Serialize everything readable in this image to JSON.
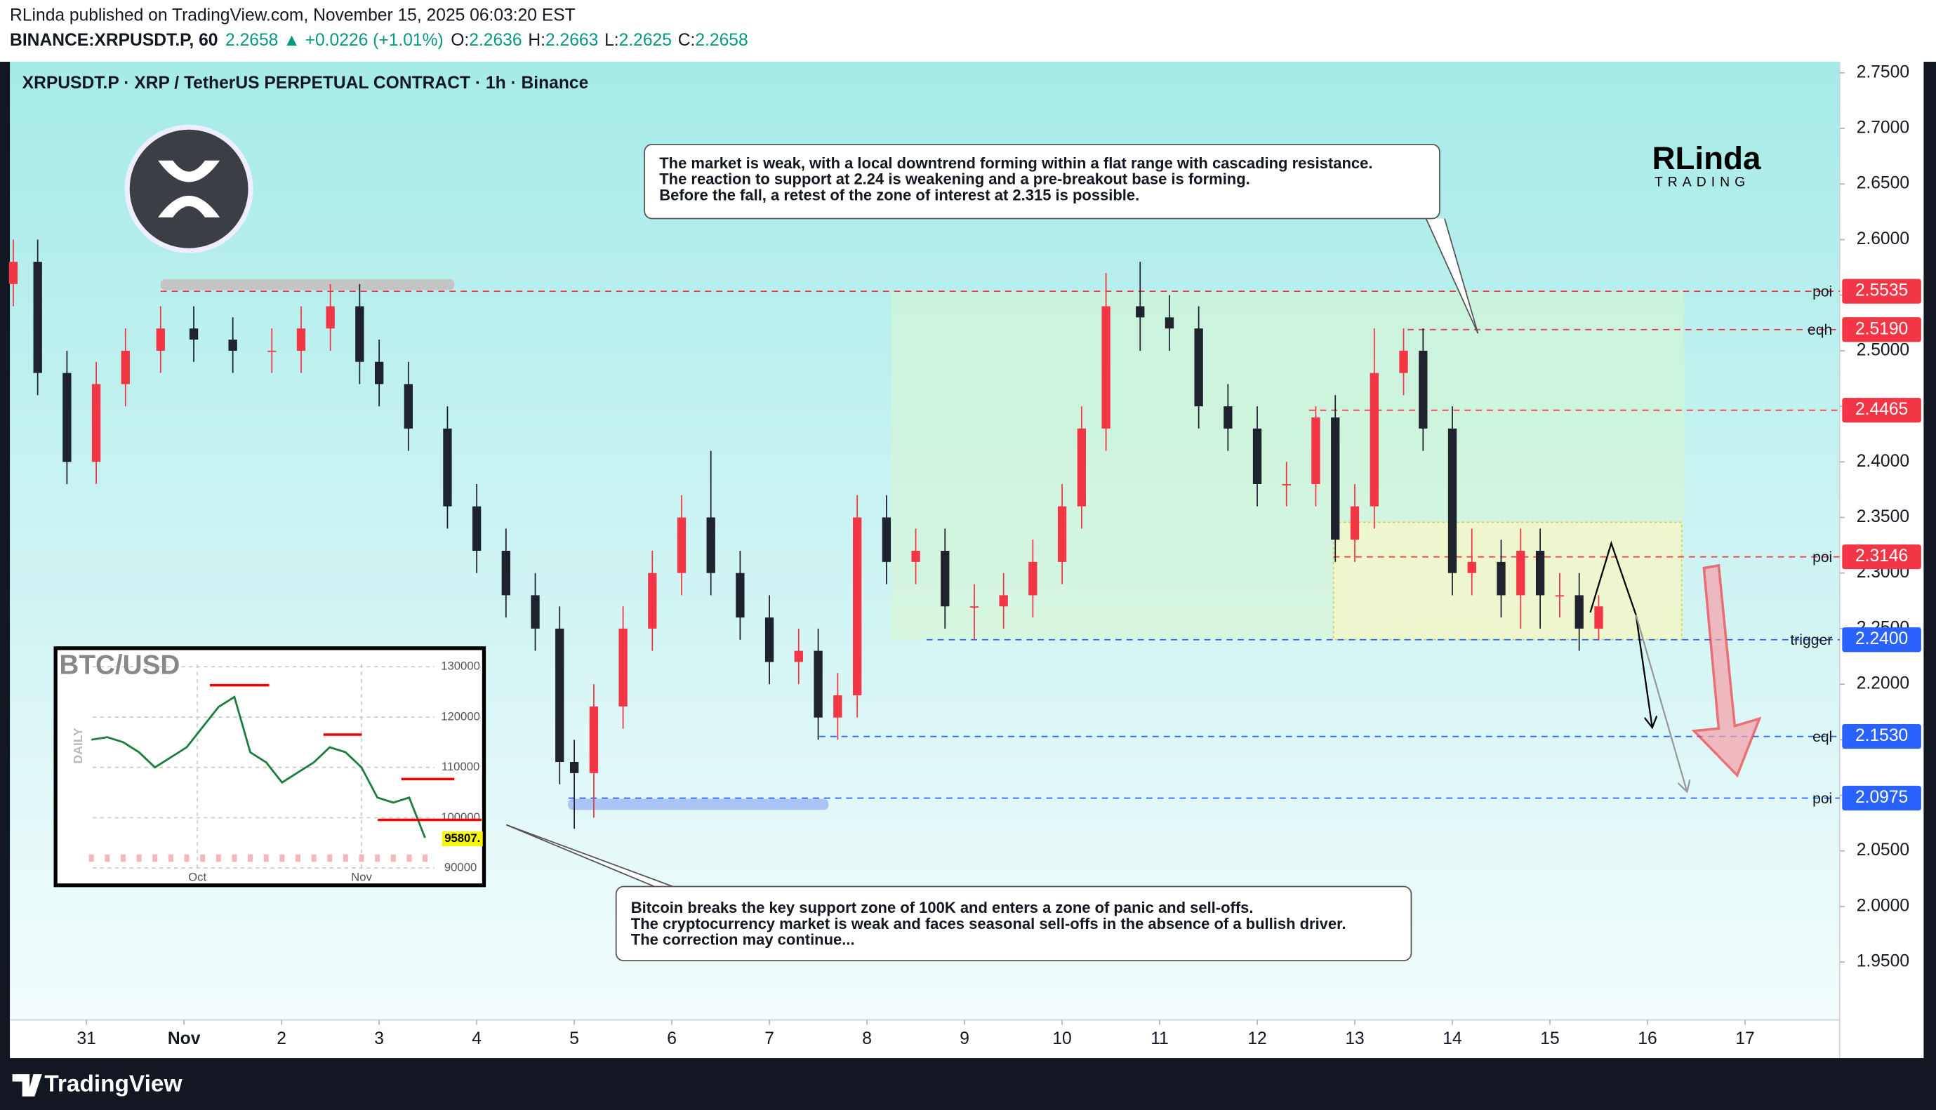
{
  "header": {
    "publisher": "RLinda published on TradingView.com, November 15, 2025 06:03:20 EST",
    "symbol": "BINANCE:XRPUSDT.P, 60",
    "last": "2.2658",
    "change": "▲ +0.0226 (+1.01%)",
    "ohlc": [
      {
        "label": "O:",
        "value": "2.2636"
      },
      {
        "label": "H:",
        "value": "2.2663"
      },
      {
        "label": "L:",
        "value": "2.2625"
      },
      {
        "label": "C:",
        "value": "2.2658"
      }
    ]
  },
  "chart_data": {
    "type": "candlestick",
    "title": "XRPUSDT.P · XRP / TetherUS PERPETUAL CONTRACT · 1h · Binance",
    "x": [
      -0.75,
      -0.5,
      -0.2,
      0.1,
      0.4,
      0.76,
      1.1,
      1.5,
      1.9,
      2.2,
      2.5,
      2.8,
      3.0,
      3.3,
      3.7,
      4.0,
      4.3,
      4.6,
      4.85,
      5.0,
      5.2,
      5.5,
      5.8,
      6.1,
      6.4,
      6.7,
      7.0,
      7.3,
      7.5,
      7.7,
      7.9,
      8.2,
      8.5,
      8.8,
      9.1,
      9.4,
      9.7,
      10.0,
      10.2,
      10.45,
      10.8,
      11.1,
      11.4,
      11.7,
      12.0,
      12.3,
      12.6,
      12.8,
      13.0,
      13.2,
      13.5,
      13.7,
      14.0,
      14.2,
      14.5,
      14.7,
      14.9,
      15.1,
      15.3,
      15.5
    ],
    "open": [
      2.56,
      2.58,
      2.48,
      2.4,
      2.47,
      2.5,
      2.52,
      2.51,
      2.5,
      2.5,
      2.52,
      2.54,
      2.49,
      2.47,
      2.43,
      2.36,
      2.32,
      2.28,
      2.25,
      2.13,
      2.12,
      2.18,
      2.25,
      2.3,
      2.35,
      2.3,
      2.26,
      2.22,
      2.23,
      2.17,
      2.19,
      2.35,
      2.31,
      2.32,
      2.27,
      2.27,
      2.28,
      2.31,
      2.36,
      2.43,
      2.54,
      2.53,
      2.52,
      2.45,
      2.43,
      2.38,
      2.38,
      2.44,
      2.33,
      2.36,
      2.48,
      2.5,
      2.43,
      2.3,
      2.31,
      2.28,
      2.32,
      2.28,
      2.28,
      2.25
    ],
    "high": [
      2.6,
      2.6,
      2.5,
      2.49,
      2.52,
      2.54,
      2.54,
      2.53,
      2.52,
      2.54,
      2.56,
      2.56,
      2.51,
      2.49,
      2.45,
      2.38,
      2.34,
      2.3,
      2.27,
      2.15,
      2.2,
      2.27,
      2.32,
      2.37,
      2.41,
      2.32,
      2.28,
      2.25,
      2.25,
      2.21,
      2.37,
      2.37,
      2.34,
      2.34,
      2.29,
      2.3,
      2.33,
      2.38,
      2.45,
      2.57,
      2.58,
      2.55,
      2.54,
      2.47,
      2.45,
      2.4,
      2.45,
      2.46,
      2.38,
      2.52,
      2.52,
      2.52,
      2.45,
      2.34,
      2.33,
      2.34,
      2.34,
      2.3,
      2.3,
      2.28
    ],
    "low": [
      2.54,
      2.46,
      2.38,
      2.38,
      2.45,
      2.48,
      2.49,
      2.48,
      2.48,
      2.48,
      2.5,
      2.47,
      2.45,
      2.41,
      2.34,
      2.3,
      2.26,
      2.23,
      2.11,
      2.07,
      2.08,
      2.16,
      2.23,
      2.28,
      2.28,
      2.24,
      2.2,
      2.2,
      2.15,
      2.15,
      2.17,
      2.29,
      2.29,
      2.25,
      2.24,
      2.25,
      2.26,
      2.29,
      2.34,
      2.41,
      2.5,
      2.5,
      2.43,
      2.41,
      2.36,
      2.36,
      2.36,
      2.31,
      2.31,
      2.34,
      2.46,
      2.41,
      2.28,
      2.28,
      2.26,
      2.25,
      2.25,
      2.26,
      2.23,
      2.24
    ],
    "close": [
      2.58,
      2.48,
      2.4,
      2.47,
      2.5,
      2.52,
      2.51,
      2.5,
      2.5,
      2.52,
      2.54,
      2.49,
      2.47,
      2.43,
      2.36,
      2.32,
      2.28,
      2.25,
      2.13,
      2.12,
      2.18,
      2.25,
      2.3,
      2.35,
      2.3,
      2.26,
      2.22,
      2.23,
      2.17,
      2.19,
      2.35,
      2.31,
      2.32,
      2.27,
      2.27,
      2.28,
      2.31,
      2.36,
      2.43,
      2.54,
      2.53,
      2.52,
      2.45,
      2.43,
      2.38,
      2.38,
      2.44,
      2.33,
      2.36,
      2.48,
      2.5,
      2.43,
      2.3,
      2.31,
      2.28,
      2.32,
      2.28,
      2.28,
      2.25,
      2.27
    ],
    "up_color": "#f23645",
    "down_color": "#1e222d",
    "grid": false,
    "xlim": [
      -0.785,
      17.97
    ],
    "ylim": [
      1.898,
      2.76
    ],
    "xticks": [
      {
        "value": 0,
        "label": "31"
      },
      {
        "value": 1,
        "label": "Nov"
      },
      {
        "value": 2,
        "label": "2"
      },
      {
        "value": 3,
        "label": "3"
      },
      {
        "value": 4,
        "label": "4"
      },
      {
        "value": 5,
        "label": "5"
      },
      {
        "value": 6,
        "label": "6"
      },
      {
        "value": 7,
        "label": "7"
      },
      {
        "value": 8,
        "label": "8"
      },
      {
        "value": 9,
        "label": "9"
      },
      {
        "value": 10,
        "label": "10"
      },
      {
        "value": 11,
        "label": "11"
      },
      {
        "value": 12,
        "label": "12"
      },
      {
        "value": 13,
        "label": "13"
      },
      {
        "value": 14,
        "label": "14"
      },
      {
        "value": 15,
        "label": "15"
      },
      {
        "value": 16,
        "label": "16"
      },
      {
        "value": 17,
        "label": "17"
      }
    ],
    "yticks": [
      {
        "value": 2.75,
        "label": "2.7500"
      },
      {
        "value": 2.7,
        "label": "2.7000"
      },
      {
        "value": 2.65,
        "label": "2.6500"
      },
      {
        "value": 2.6,
        "label": "2.6000"
      },
      {
        "value": 2.55,
        "label": "2.5500"
      },
      {
        "value": 2.5,
        "label": "2.5000"
      },
      {
        "value": 2.45,
        "label": "2.4500"
      },
      {
        "value": 2.4,
        "label": "2.4000"
      },
      {
        "value": 2.35,
        "label": "2.3500"
      },
      {
        "value": 2.3,
        "label": "2.3000"
      },
      {
        "value": 2.25,
        "label": "2.2500"
      },
      {
        "value": 2.2,
        "label": "2.2000"
      },
      {
        "value": 2.15,
        "label": "2.1500"
      },
      {
        "value": 2.1,
        "label": "2.1000"
      },
      {
        "value": 2.05,
        "label": "2.0500"
      },
      {
        "value": 2.0,
        "label": "2.0000"
      },
      {
        "value": 1.95,
        "label": "1.9500"
      }
    ],
    "levels": [
      {
        "value": 2.5535,
        "label": "2.5535",
        "tag": "poi",
        "from": 0.76,
        "color": "#f23645"
      },
      {
        "value": 2.519,
        "label": "2.5190",
        "tag": "eqh",
        "from": 13.54,
        "color": "#f23645"
      },
      {
        "value": 2.4465,
        "label": "2.4465",
        "from": 12.53,
        "color": "#f23645"
      },
      {
        "value": 2.3146,
        "label": "2.3146",
        "tag": "poi",
        "from": 12.78,
        "color": "#f23645"
      },
      {
        "value": 2.24,
        "label": "2.2400",
        "tag": "trigger",
        "from": 8.61,
        "color": "#2962ff"
      },
      {
        "value": 2.153,
        "label": "2.1530",
        "tag": "eql",
        "from": 7.51,
        "color": "#2962ff"
      },
      {
        "value": 2.0975,
        "label": "2.0975",
        "tag": "poi",
        "from": 4.94,
        "color": "#2962ff"
      }
    ],
    "annotations": [
      {
        "lines": [
          "The market is weak, with a local downtrend forming within a flat range with cascading resistance.",
          "The reaction to support at 2.24 is weakening and a pre-breakout base is forming.",
          "Before the fall, a retest of the zone of interest at 2.315 is possible."
        ]
      },
      {
        "lines": [
          "Bitcoin breaks the key support zone of 100K and enters a zone of panic and sell-offs.",
          "The cryptocurrency market is weak and faces seasonal sell-offs in the absence of a bullish driver.",
          "The correction may continue..."
        ]
      }
    ]
  },
  "inset": {
    "type": "line",
    "title": "BTC/USD",
    "timeframe": "DAILY",
    "color": "#1b7f3b",
    "x": [
      -20,
      -17,
      -14,
      -11,
      -8,
      -5,
      -2,
      1,
      4,
      7,
      10,
      13,
      16,
      19,
      22,
      25,
      28,
      31,
      34,
      37,
      40,
      43
    ],
    "values": [
      115500,
      116000,
      115000,
      113000,
      110000,
      112000,
      114000,
      118000,
      122000,
      124000,
      113000,
      111000,
      107000,
      109000,
      111000,
      114000,
      113000,
      110000,
      104000,
      103000,
      104000,
      96000
    ],
    "xlim": [
      -25.6,
      44.8
    ],
    "ylim": [
      87800,
      132450
    ],
    "xticks": [
      {
        "value": 0,
        "label": "Oct"
      },
      {
        "value": 31,
        "label": "Nov"
      }
    ],
    "yticks": [
      130000,
      120000,
      110000,
      100000,
      90000
    ],
    "last_value": 95807,
    "last_label": "95807."
  },
  "logo": {
    "name": "RLinda",
    "sub": "TRADING"
  },
  "footer": {
    "brand": "TradingView"
  }
}
